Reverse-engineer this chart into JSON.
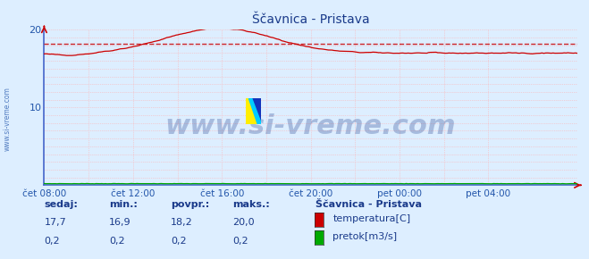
{
  "title": "Ščavnica - Pristava",
  "bg_color": "#ddeeff",
  "plot_bg_color": "#ddeeff",
  "grid_color": "#ffb0b0",
  "border_color": "#4466cc",
  "x_labels": [
    "čet 08:00",
    "čet 12:00",
    "čet 16:00",
    "čet 20:00",
    "pet 00:00",
    "pet 04:00"
  ],
  "x_ticks_norm": [
    0.0,
    0.1667,
    0.3333,
    0.5,
    0.6667,
    0.8333
  ],
  "ylim": [
    0,
    20
  ],
  "yticks": [
    10,
    20
  ],
  "temp_color": "#cc0000",
  "flow_color": "#00aa00",
  "avg_line_color": "#cc0000",
  "avg_value": 18.2,
  "watermark": "www.si-vreme.com",
  "watermark_color": "#1a3a8a",
  "watermark_alpha": 0.28,
  "sidebar_text": "www.si-vreme.com",
  "sidebar_color": "#2255aa",
  "legend_title": "Ščavnica - Pristava",
  "legend_items": [
    "temperatura[C]",
    "pretok[m3/s]"
  ],
  "legend_colors": [
    "#cc0000",
    "#00aa00"
  ],
  "stats_headers": [
    "sedaj:",
    "min.:",
    "povpr.:",
    "maks.:"
  ],
  "stats_temp": [
    "17,7",
    "16,9",
    "18,2",
    "20,0"
  ],
  "stats_flow": [
    "0,2",
    "0,2",
    "0,2",
    "0,2"
  ],
  "stats_color": "#1a3a8a",
  "title_color": "#1a3a8a",
  "axis_label_color": "#2255aa",
  "n_points": 288
}
